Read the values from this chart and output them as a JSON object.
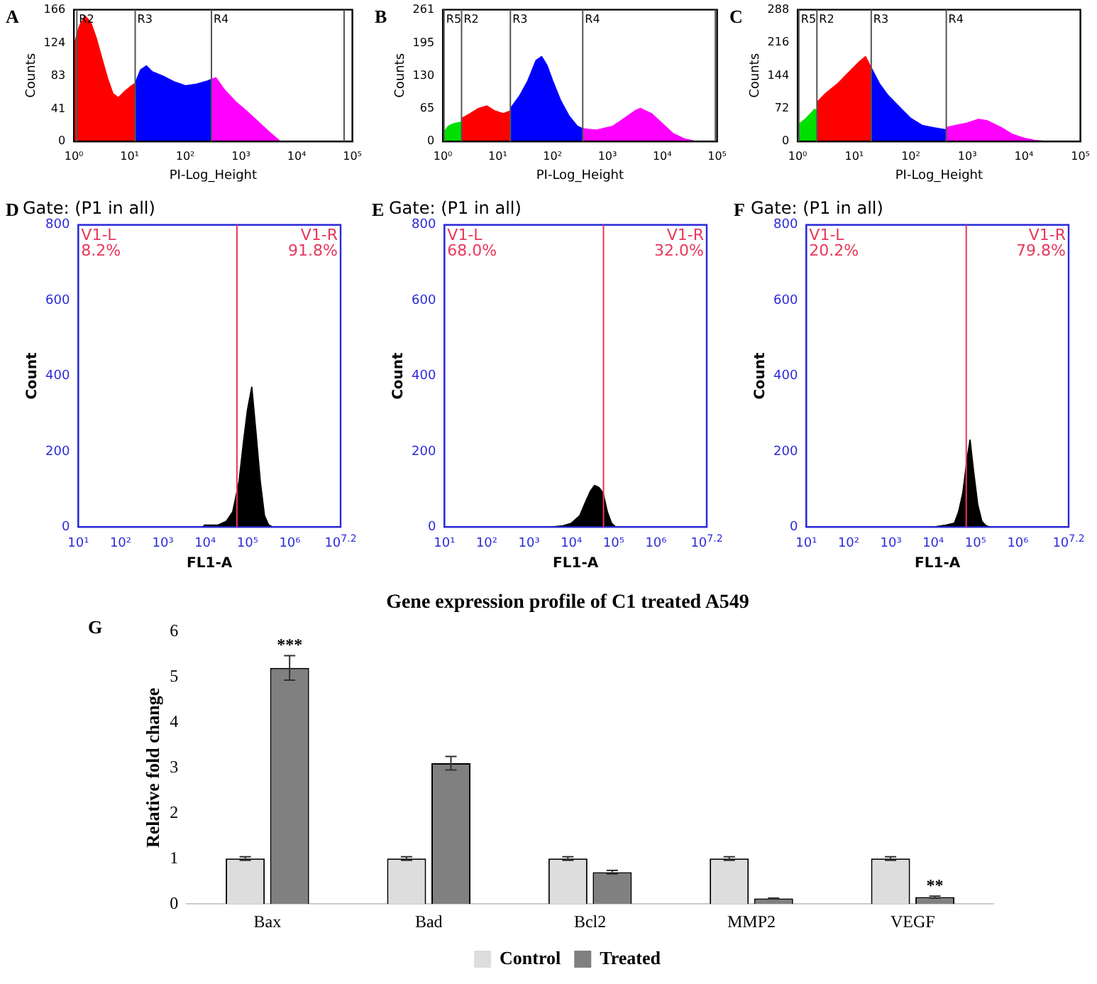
{
  "chart_data": [
    {
      "type": "area",
      "xlabel": "PI-Log_Height",
      "ylabel": "Counts",
      "log": "x",
      "grid": false,
      "legend": false,
      "annotations": [
        "A"
      ],
      "xlim": [
        1,
        100000
      ],
      "xticks": [
        {
          "value": 1,
          "label": "10⁰"
        },
        {
          "value": 10,
          "label": "10¹"
        },
        {
          "value": 100,
          "label": "10²"
        },
        {
          "value": 1000,
          "label": "10³"
        },
        {
          "value": 10000,
          "label": "10⁴"
        },
        {
          "value": 100000,
          "label": "10⁵"
        }
      ],
      "ylim": [
        0,
        166
      ],
      "yticks": [
        0,
        41,
        83,
        124,
        166
      ],
      "ref_lines": [
        {
          "axis": "x",
          "value": 1.13,
          "label": "R2"
        },
        {
          "axis": "x",
          "value": 12.6,
          "label": "R3"
        },
        {
          "axis": "x",
          "value": 295,
          "label": "R4"
        },
        {
          "axis": "x",
          "value": 71000,
          "label": null
        }
      ],
      "series": [
        {
          "color": "#ff0000",
          "x": [
            1,
            1.26,
            1.58,
            2,
            2.51,
            3.16,
            3.98,
            5.01,
            6.31,
            7.94,
            10,
            12.6
          ],
          "values": [
            120,
            145,
            158,
            150,
            130,
            105,
            80,
            60,
            55,
            62,
            68,
            73
          ]
        },
        {
          "color": "#0000ff",
          "x": [
            12.6,
            15.8,
            20,
            25.1,
            31.6,
            39.8,
            63.1,
            100,
            158,
            251,
            295
          ],
          "values": [
            73,
            90,
            95,
            88,
            85,
            82,
            75,
            70,
            72,
            76,
            78
          ]
        },
        {
          "color": "#ff00ff",
          "x": [
            295,
            355,
            501,
            794,
            1260,
            2000,
            3160,
            4470,
            5010
          ],
          "values": [
            78,
            80,
            65,
            50,
            38,
            25,
            12,
            3,
            0
          ]
        }
      ]
    },
    {
      "type": "area",
      "xlabel": "PI-Log_Height",
      "ylabel": "Counts",
      "log": "x",
      "grid": false,
      "legend": false,
      "annotations": [
        "B"
      ],
      "xlim": [
        1,
        100000
      ],
      "xticks": [
        {
          "value": 1,
          "label": "10⁰"
        },
        {
          "value": 10,
          "label": "10¹"
        },
        {
          "value": 100,
          "label": "10²"
        },
        {
          "value": 1000,
          "label": "10³"
        },
        {
          "value": 10000,
          "label": "10⁴"
        },
        {
          "value": 100000,
          "label": "10⁵"
        }
      ],
      "ylim": [
        0,
        261
      ],
      "yticks": [
        0,
        65,
        130,
        195,
        261
      ],
      "ref_lines": [
        {
          "axis": "x",
          "value": 1.05,
          "label": "R5"
        },
        {
          "axis": "x",
          "value": 2.19,
          "label": "R2"
        },
        {
          "axis": "x",
          "value": 17,
          "label": "R3"
        },
        {
          "axis": "x",
          "value": 355,
          "label": "R4"
        },
        {
          "axis": "x",
          "value": 93000,
          "label": null
        }
      ],
      "series": [
        {
          "color": "#00e000",
          "x": [
            1,
            1.26,
            1.58,
            2.19
          ],
          "values": [
            15,
            30,
            35,
            38
          ]
        },
        {
          "color": "#ff0000",
          "x": [
            2.19,
            3.16,
            4.47,
            6.31,
            8.91,
            12.6,
            17
          ],
          "values": [
            45,
            55,
            65,
            70,
            60,
            55,
            60
          ]
        },
        {
          "color": "#0000ff",
          "x": [
            17,
            25.1,
            35.5,
            50.1,
            63.1,
            79.4,
            100,
            141,
            200,
            282,
            355
          ],
          "values": [
            65,
            90,
            120,
            160,
            168,
            150,
            120,
            80,
            50,
            30,
            25
          ]
        },
        {
          "color": "#ff00ff",
          "x": [
            355,
            631,
            1260,
            2000,
            3160,
            3980,
            6310,
            10000,
            15800,
            25100,
            39800
          ],
          "values": [
            25,
            22,
            30,
            45,
            60,
            65,
            55,
            35,
            15,
            5,
            0
          ]
        }
      ]
    },
    {
      "type": "area",
      "xlabel": "PI-Log_Height",
      "ylabel": "Counts",
      "log": "x",
      "grid": false,
      "legend": false,
      "annotations": [
        "C"
      ],
      "xlim": [
        1,
        100000
      ],
      "xticks": [
        {
          "value": 1,
          "label": "10⁰"
        },
        {
          "value": 10,
          "label": "10¹"
        },
        {
          "value": 100,
          "label": "10²"
        },
        {
          "value": 1000,
          "label": "10³"
        },
        {
          "value": 10000,
          "label": "10⁴"
        },
        {
          "value": 100000,
          "label": "10⁵"
        }
      ],
      "ylim": [
        0,
        288
      ],
      "yticks": [
        0,
        72,
        144,
        216,
        288
      ],
      "ref_lines": [
        {
          "axis": "x",
          "value": 1.05,
          "label": "R5"
        },
        {
          "axis": "x",
          "value": 2.19,
          "label": "R2"
        },
        {
          "axis": "x",
          "value": 20,
          "label": "R3"
        },
        {
          "axis": "x",
          "value": 425,
          "label": "R4"
        }
      ],
      "series": [
        {
          "color": "#00e000",
          "x": [
            1,
            1.41,
            2,
            2.19
          ],
          "values": [
            35,
            50,
            70,
            65
          ]
        },
        {
          "color": "#ff0000",
          "x": [
            2.19,
            3.16,
            5.01,
            7.94,
            12.6,
            15.8,
            20
          ],
          "values": [
            85,
            105,
            125,
            150,
            175,
            185,
            160
          ]
        },
        {
          "color": "#0000ff",
          "x": [
            20,
            28.2,
            39.8,
            63.1,
            100,
            158,
            251,
            417
          ],
          "values": [
            160,
            125,
            100,
            75,
            50,
            35,
            30,
            25
          ]
        },
        {
          "color": "#ff00ff",
          "x": [
            417,
            631,
            1000,
            1580,
            2240,
            3980,
            6310,
            10000,
            15800,
            25100
          ],
          "values": [
            30,
            35,
            40,
            48,
            45,
            30,
            15,
            7,
            2,
            0
          ]
        }
      ]
    },
    {
      "type": "area",
      "title": "Gate: (P1 in all)",
      "xlabel": "FL1-A",
      "ylabel": "Count",
      "log": "x",
      "grid": false,
      "legend": false,
      "annotations": [
        "D",
        "V1-L\n8.2%",
        "V1-R\n91.8%"
      ],
      "xlim": [
        10,
        15848932
      ],
      "xticks": [
        {
          "value": 10,
          "label": "10¹"
        },
        {
          "value": 100,
          "label": "10²"
        },
        {
          "value": 1000,
          "label": "10³"
        },
        {
          "value": 10000,
          "label": "10⁴"
        },
        {
          "value": 100000,
          "label": "10⁵"
        },
        {
          "value": 1000000,
          "label": "10⁶"
        },
        {
          "value": 15848932,
          "label": "10$^{7.2}$"
        }
      ],
      "ylim": [
        0,
        800
      ],
      "yticks": [
        0,
        200,
        400,
        600,
        800
      ],
      "ref_lines": [
        {
          "axis": "x",
          "value": 56200,
          "label": null,
          "color": "#e8385a"
        }
      ],
      "series": [
        {
          "color": "#000000",
          "x": [
            8910,
            9550,
            20000,
            31600,
            44700,
            63100,
            79400,
            100000,
            126000,
            158000,
            200000,
            251000,
            316000,
            398000
          ],
          "values": [
            0,
            5,
            5,
            15,
            40,
            120,
            220,
            310,
            370,
            250,
            120,
            30,
            5,
            0
          ]
        }
      ]
    },
    {
      "type": "area",
      "title": "Gate: (P1 in all)",
      "xlabel": "FL1-A",
      "ylabel": "Count",
      "log": "x",
      "grid": false,
      "legend": false,
      "annotations": [
        "E",
        "V1-L\n68.0%",
        "V1-R\n32.0%"
      ],
      "xlim": [
        10,
        15848932
      ],
      "xticks": [
        {
          "value": 10,
          "label": "10¹"
        },
        {
          "value": 100,
          "label": "10²"
        },
        {
          "value": 1000,
          "label": "10³"
        },
        {
          "value": 10000,
          "label": "10⁴"
        },
        {
          "value": 100000,
          "label": "10⁵"
        },
        {
          "value": 1000000,
          "label": "10⁶"
        },
        {
          "value": 15848932,
          "label": "10$^{7.2}$"
        }
      ],
      "ylim": [
        0,
        800
      ],
      "yticks": [
        0,
        200,
        400,
        600,
        800
      ],
      "ref_lines": [
        {
          "axis": "x",
          "value": 57500,
          "label": null,
          "color": "#e8385a"
        }
      ],
      "series": [
        {
          "color": "#000000",
          "x": [
            3160,
            6310,
            10000,
            15800,
            22400,
            28200,
            35500,
            44700,
            56200,
            70800,
            89100,
            112000
          ],
          "values": [
            0,
            3,
            10,
            30,
            70,
            95,
            110,
            105,
            90,
            40,
            10,
            0
          ]
        }
      ]
    },
    {
      "type": "area",
      "title": "Gate: (P1 in all)",
      "xlabel": "FL1-A",
      "ylabel": "Count",
      "log": "x",
      "grid": false,
      "legend": false,
      "annotations": [
        "F",
        "V1-L\n20.2%",
        "V1-R\n79.8%"
      ],
      "xlim": [
        10,
        15848932
      ],
      "xticks": [
        {
          "value": 10,
          "label": "10¹"
        },
        {
          "value": 100,
          "label": "10²"
        },
        {
          "value": 1000,
          "label": "10³"
        },
        {
          "value": 10000,
          "label": "10⁴"
        },
        {
          "value": 100000,
          "label": "10⁵"
        },
        {
          "value": 1000000,
          "label": "10⁶"
        },
        {
          "value": 15848932,
          "label": "10$^{7.2}$"
        }
      ],
      "ylim": [
        0,
        800
      ],
      "yticks": [
        0,
        200,
        400,
        600,
        800
      ],
      "ref_lines": [
        {
          "axis": "x",
          "value": 60300,
          "label": null,
          "color": "#e8385a"
        }
      ],
      "series": [
        {
          "color": "#000000",
          "x": [
            10000,
            20000,
            31600,
            39800,
            50100,
            63100,
            74100,
            89100,
            112000,
            141000,
            178000,
            224000
          ],
          "values": [
            0,
            5,
            10,
            40,
            90,
            180,
            230,
            150,
            60,
            15,
            3,
            0
          ]
        }
      ]
    },
    {
      "type": "bar",
      "title": "Gene expression profile of C1 treated A549",
      "ylabel": "Relative fold change",
      "grid": false,
      "legend": "bottom",
      "annotations": [
        "G",
        {
          "text": "***",
          "x": "Bax",
          "y": 5.2
        },
        {
          "text": "**",
          "x": "VEGF",
          "y": 0.15
        }
      ],
      "categories": [
        "Bax",
        "Bad",
        "Bcl2",
        "MMP2",
        "VEGF"
      ],
      "ylim": [
        0,
        6
      ],
      "yticks": [
        0,
        1,
        2,
        3,
        4,
        5,
        6
      ],
      "series": [
        {
          "name": "Control",
          "color": "#dddddd",
          "values": [
            1,
            1,
            1,
            1,
            1
          ],
          "errors": [
            0.04,
            0.04,
            0.04,
            0.04,
            0.04
          ]
        },
        {
          "name": "Treated",
          "color": "#808080",
          "values": [
            5.2,
            3.1,
            0.7,
            0.12,
            0.15
          ],
          "errors": [
            0.27,
            0.15,
            0.04,
            0.01,
            0.02
          ]
        }
      ]
    }
  ]
}
